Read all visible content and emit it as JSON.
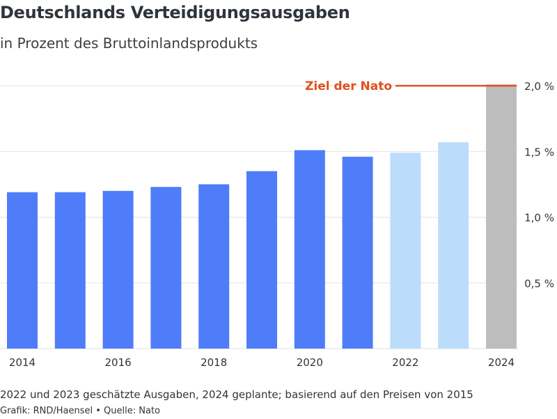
{
  "header": {
    "title": "Deutschlands Verteidigungsausgaben",
    "subtitle": "in Prozent des Bruttoinlandsprodukts"
  },
  "footer": {
    "note": "2022 und 2023 geschätzte Ausgaben, 2024 geplante; basierend auf den Preisen von 2015",
    "credit": "Grafik: RND/Haensel • Quelle: Nato"
  },
  "colors": {
    "actual": "#4f7df9",
    "estimated": "#bcdcfb",
    "planned": "#bdbdbd",
    "target": "#e0501e",
    "grid": "#e2e2e2"
  },
  "chart_data": {
    "type": "bar",
    "categories": [
      "2014",
      "2015",
      "2016",
      "2017",
      "2018",
      "2019",
      "2020",
      "2021",
      "2022",
      "2023",
      "2024"
    ],
    "values": [
      1.19,
      1.19,
      1.2,
      1.23,
      1.25,
      1.35,
      1.51,
      1.46,
      1.49,
      1.57,
      2.01
    ],
    "kinds": [
      "actual",
      "actual",
      "actual",
      "actual",
      "actual",
      "actual",
      "actual",
      "actual",
      "estimated",
      "estimated",
      "planned"
    ],
    "xtick_labels": [
      "2014",
      "",
      "2016",
      "",
      "2018",
      "",
      "2020",
      "",
      "2022",
      "",
      "2024"
    ],
    "yticks": [
      0.5,
      1.0,
      1.5,
      2.0
    ],
    "ytick_labels": [
      "0,5 %",
      "1,0 %",
      "1,5 %",
      "2,0 %"
    ],
    "ylim": [
      0,
      2.0
    ],
    "grid": true,
    "annotation": {
      "label": "Ziel der Nato",
      "y": 2.0
    }
  }
}
